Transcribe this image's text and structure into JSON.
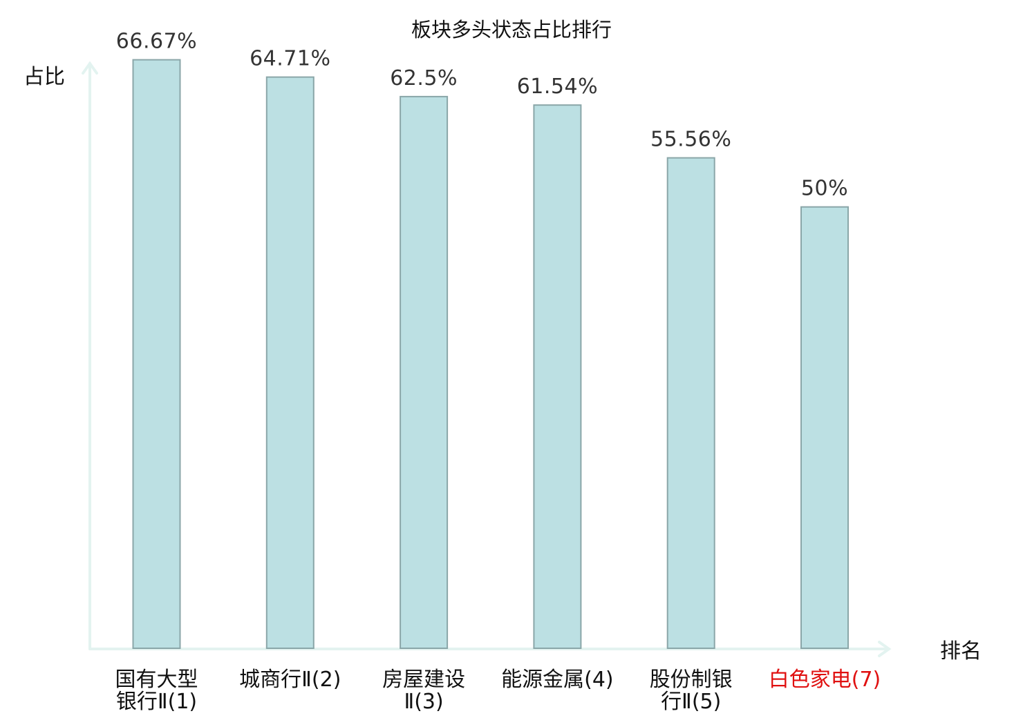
{
  "chart_data": {
    "type": "bar",
    "title": "板块多头状态占比排行",
    "ylabel": "占比",
    "xlabel": "排名",
    "ylim": [
      0,
      70
    ],
    "grid": false,
    "categories": [
      [
        "国有大型",
        "银行Ⅱ(1)"
      ],
      [
        "城商行Ⅱ(2)"
      ],
      [
        "房屋建设",
        "Ⅱ(3)"
      ],
      [
        "能源金属(4)"
      ],
      [
        "股份制银",
        "行Ⅱ(5)"
      ],
      [
        "白色家电(7)"
      ]
    ],
    "values": [
      66.67,
      64.71,
      62.5,
      61.54,
      55.56,
      50
    ],
    "value_labels": [
      "66.67%",
      "64.71%",
      "62.5%",
      "61.54%",
      "55.56%",
      "50%"
    ],
    "category_colors": [
      "#111111",
      "#111111",
      "#111111",
      "#111111",
      "#111111",
      "#e01010"
    ],
    "bar_color": "#bce0e3",
    "bar_edge_color": "#8aa6a8",
    "axis_color": "#e3f3f0"
  }
}
